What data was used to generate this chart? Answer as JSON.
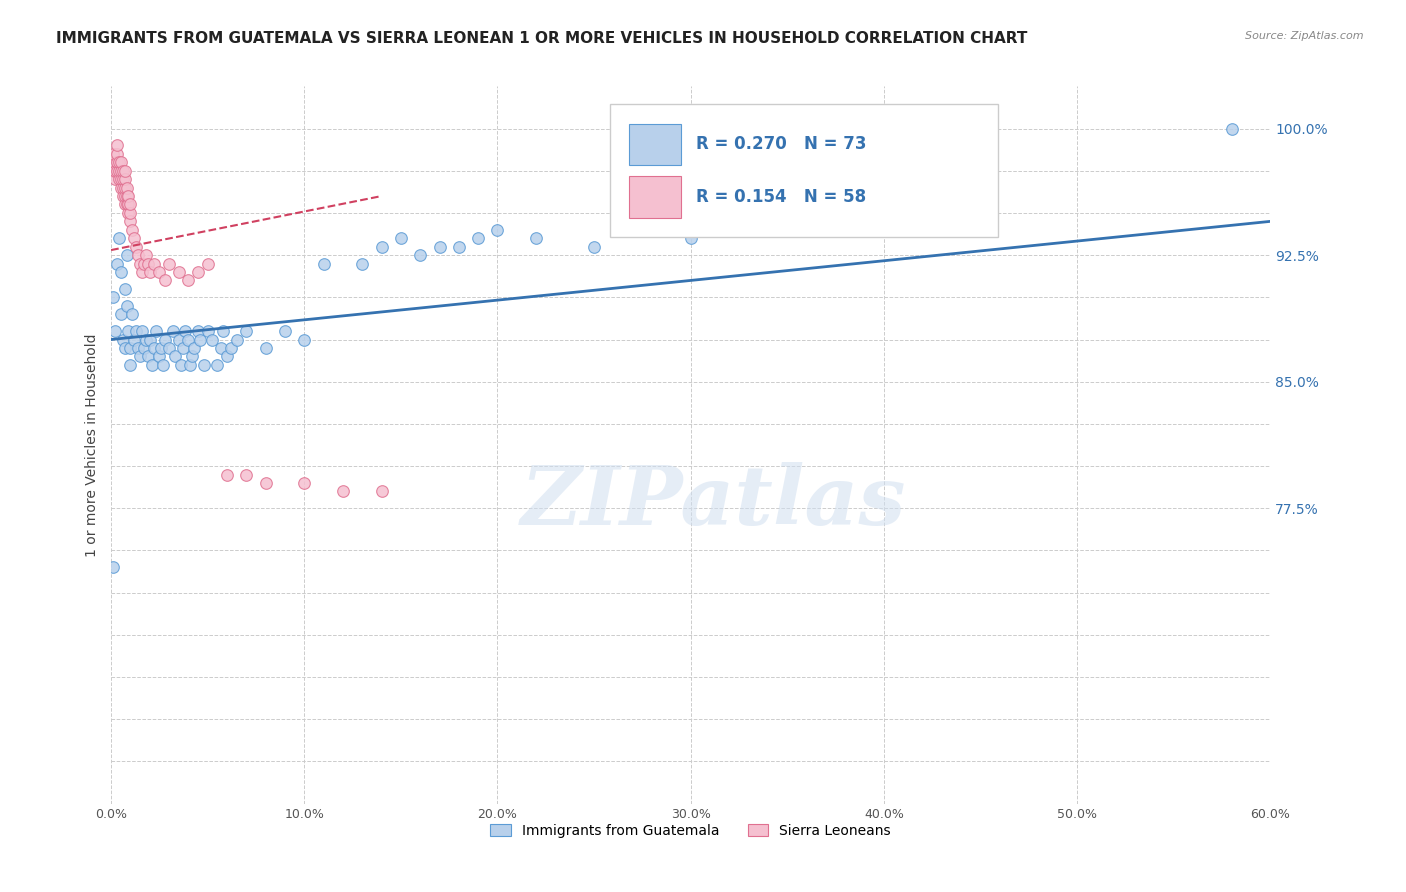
{
  "title": "IMMIGRANTS FROM GUATEMALA VS SIERRA LEONEAN 1 OR MORE VEHICLES IN HOUSEHOLD CORRELATION CHART",
  "source": "Source: ZipAtlas.com",
  "ylabel_label": "1 or more Vehicles in Household",
  "legend_blue_label": "Immigrants from Guatemala",
  "legend_pink_label": "Sierra Leoneans",
  "R_blue": 0.27,
  "N_blue": 73,
  "R_pink": 0.154,
  "N_pink": 58,
  "blue_fill": "#b8d0eb",
  "pink_fill": "#f5c0d0",
  "blue_edge": "#5b9bd5",
  "pink_edge": "#e07090",
  "blue_line": "#3572b0",
  "pink_line": "#d04060",
  "watermark_color": "#d0dff0",
  "xlim": [
    0.0,
    0.6
  ],
  "ylim": [
    0.6,
    1.025
  ],
  "right_yticks": [
    0.775,
    0.85,
    0.925,
    1.0
  ],
  "right_yticklabels": [
    "77.5%",
    "85.0%",
    "92.5%",
    "100.0%"
  ],
  "xtick_vals": [
    0.0,
    0.1,
    0.2,
    0.3,
    0.4,
    0.5,
    0.6
  ],
  "xtick_labels": [
    "0.0%",
    "10.0%",
    "20.0%",
    "30.0%",
    "40.0%",
    "50.0%",
    "60.0%"
  ],
  "title_fontsize": 11,
  "axis_fontsize": 9,
  "watermark_text": "ZIPatlas",
  "marker_size": 70,
  "blue_scatter_x": [
    0.001,
    0.002,
    0.003,
    0.004,
    0.005,
    0.005,
    0.006,
    0.007,
    0.007,
    0.008,
    0.008,
    0.009,
    0.01,
    0.01,
    0.011,
    0.012,
    0.013,
    0.014,
    0.015,
    0.016,
    0.017,
    0.018,
    0.019,
    0.02,
    0.021,
    0.022,
    0.023,
    0.025,
    0.026,
    0.027,
    0.028,
    0.03,
    0.032,
    0.033,
    0.035,
    0.036,
    0.037,
    0.038,
    0.04,
    0.041,
    0.042,
    0.043,
    0.045,
    0.046,
    0.048,
    0.05,
    0.052,
    0.055,
    0.057,
    0.058,
    0.06,
    0.062,
    0.065,
    0.07,
    0.08,
    0.09,
    0.1,
    0.11,
    0.13,
    0.14,
    0.15,
    0.16,
    0.17,
    0.18,
    0.19,
    0.2,
    0.22,
    0.25,
    0.3,
    0.35,
    0.4,
    0.58,
    0.001
  ],
  "blue_scatter_y": [
    0.9,
    0.88,
    0.92,
    0.935,
    0.89,
    0.915,
    0.875,
    0.905,
    0.87,
    0.925,
    0.895,
    0.88,
    0.87,
    0.86,
    0.89,
    0.875,
    0.88,
    0.87,
    0.865,
    0.88,
    0.87,
    0.875,
    0.865,
    0.875,
    0.86,
    0.87,
    0.88,
    0.865,
    0.87,
    0.86,
    0.875,
    0.87,
    0.88,
    0.865,
    0.875,
    0.86,
    0.87,
    0.88,
    0.875,
    0.86,
    0.865,
    0.87,
    0.88,
    0.875,
    0.86,
    0.88,
    0.875,
    0.86,
    0.87,
    0.88,
    0.865,
    0.87,
    0.875,
    0.88,
    0.87,
    0.88,
    0.875,
    0.92,
    0.92,
    0.93,
    0.935,
    0.925,
    0.93,
    0.93,
    0.935,
    0.94,
    0.935,
    0.93,
    0.935,
    0.94,
    0.945,
    1.0,
    0.74
  ],
  "pink_scatter_x": [
    0.001,
    0.001,
    0.001,
    0.002,
    0.002,
    0.003,
    0.003,
    0.003,
    0.003,
    0.004,
    0.004,
    0.004,
    0.005,
    0.005,
    0.005,
    0.005,
    0.006,
    0.006,
    0.006,
    0.006,
    0.007,
    0.007,
    0.007,
    0.007,
    0.007,
    0.008,
    0.008,
    0.008,
    0.009,
    0.009,
    0.009,
    0.01,
    0.01,
    0.01,
    0.011,
    0.012,
    0.013,
    0.014,
    0.015,
    0.016,
    0.017,
    0.018,
    0.019,
    0.02,
    0.022,
    0.025,
    0.028,
    0.03,
    0.035,
    0.04,
    0.045,
    0.05,
    0.06,
    0.07,
    0.08,
    0.1,
    0.12,
    0.14
  ],
  "pink_scatter_y": [
    0.975,
    0.98,
    0.985,
    0.97,
    0.975,
    0.975,
    0.98,
    0.985,
    0.99,
    0.97,
    0.975,
    0.98,
    0.965,
    0.97,
    0.975,
    0.98,
    0.96,
    0.965,
    0.97,
    0.975,
    0.955,
    0.96,
    0.965,
    0.97,
    0.975,
    0.955,
    0.96,
    0.965,
    0.95,
    0.955,
    0.96,
    0.945,
    0.95,
    0.955,
    0.94,
    0.935,
    0.93,
    0.925,
    0.92,
    0.915,
    0.92,
    0.925,
    0.92,
    0.915,
    0.92,
    0.915,
    0.91,
    0.92,
    0.915,
    0.91,
    0.915,
    0.92,
    0.795,
    0.795,
    0.79,
    0.79,
    0.785,
    0.785
  ]
}
